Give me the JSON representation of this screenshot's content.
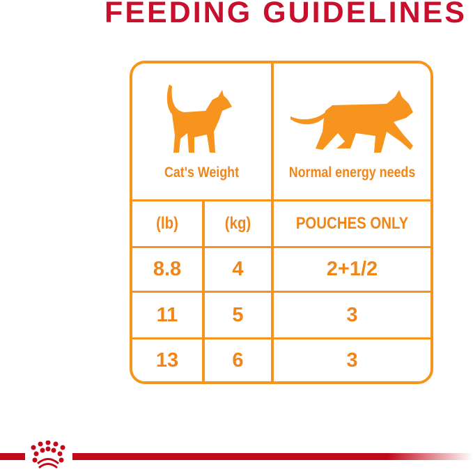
{
  "title": "FEEDING GUIDELINES",
  "colors": {
    "accent": "#f7941d",
    "brand_red": "#c8102e"
  },
  "header": {
    "left_label": "Cat's Weight",
    "right_label": "Normal energy needs"
  },
  "columns": [
    "(lb)",
    "(kg)",
    "POUCHES ONLY"
  ],
  "rows": [
    {
      "lb": "8.8",
      "kg": "4",
      "pouches": "2+1/2"
    },
    {
      "lb": "11",
      "kg": "5",
      "pouches": "3"
    },
    {
      "lb": "13",
      "kg": "6",
      "pouches": "3"
    }
  ],
  "logo": {
    "icon": "royal-canin-crown-icon"
  }
}
